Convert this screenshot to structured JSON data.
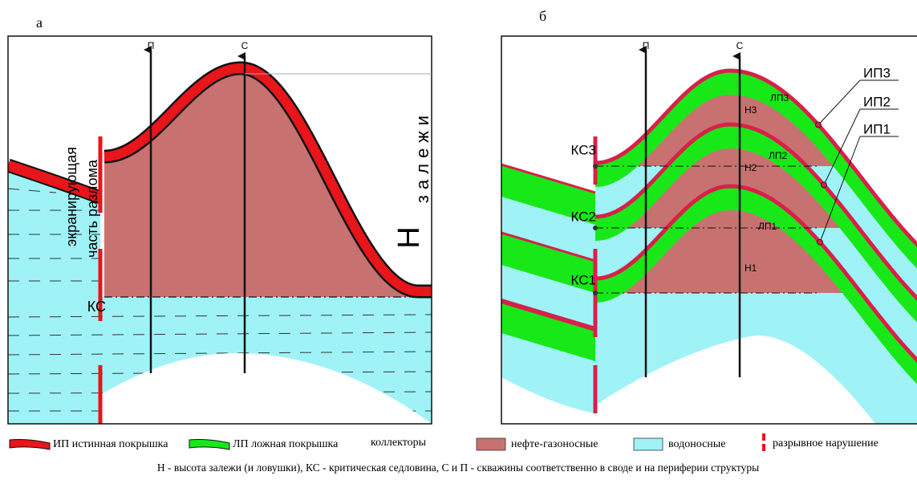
{
  "panels": [
    {
      "label": "а",
      "wells": [
        "П",
        "С"
      ],
      "fault_label": [
        "экранирующая",
        "часть разлома"
      ],
      "saddle": "КС",
      "height_label": {
        "symbol": "Н",
        "text": "залежи"
      }
    },
    {
      "label": "б",
      "wells": [
        "П",
        "С"
      ],
      "saddles": [
        "КС3",
        "КС2",
        "КС1"
      ],
      "true_caps": [
        "ИП3",
        "ИП2",
        "ИП1"
      ],
      "false_caps": [
        "ЛП3",
        "ЛП2",
        "ЛП1"
      ],
      "heights": [
        "Н3",
        "Н2",
        "Н1"
      ]
    }
  ],
  "legend": {
    "items": [
      "ИП истинная покрышка",
      "ЛП ложная покрышка",
      "коллекторы",
      "нефте-газоносные",
      "водоносные",
      "разрывное нарушение"
    ]
  },
  "caption": "Н - высота залежи (и ловушки),  КС - критическая седловина, С и П - скважины соответственно в своде и на периферии структуры"
}
